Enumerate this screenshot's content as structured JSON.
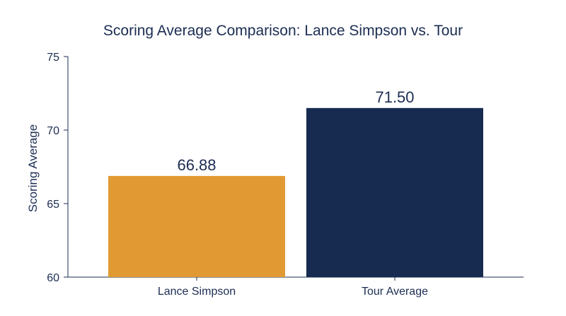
{
  "chart_data": {
    "type": "bar",
    "title": "Scoring Average Comparison: Lance Simpson vs. Tour",
    "xlabel": "",
    "ylabel": "Scoring Average",
    "categories": [
      "Lance Simpson",
      "Tour Average"
    ],
    "values": [
      66.88,
      71.5
    ],
    "value_labels": [
      "66.88",
      "71.50"
    ],
    "ylim": [
      60,
      75
    ],
    "yticks": [
      60,
      65,
      70,
      75
    ],
    "ytick_labels": [
      "60",
      "65",
      "70",
      "75"
    ],
    "grid": false,
    "legend": "none",
    "colors": {
      "bars": [
        "#e19a33",
        "#172b50"
      ],
      "text": "#1b2d52",
      "axis": "#1b2d52"
    }
  }
}
